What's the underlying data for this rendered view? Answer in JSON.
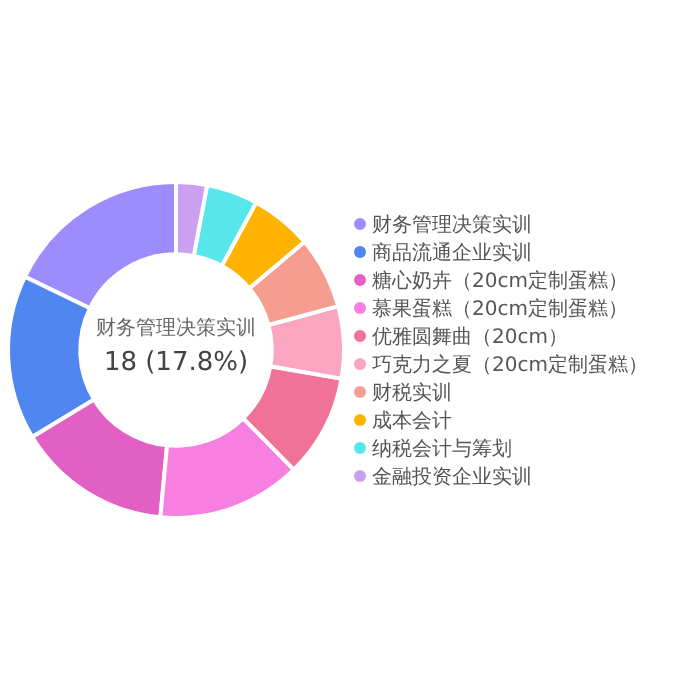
{
  "chart_data": {
    "type": "donut",
    "categories": [
      "财务管理决策实训",
      "商品流通企业实训",
      "糖心奶卉（20cm定制蛋糕）",
      "慕果蛋糕（20cm定制蛋糕）",
      "优雅圆舞曲（20cm）",
      "巧克力之夏（20cm定制蛋糕）",
      "财税实训",
      "成本会计",
      "纳税会计与筹划",
      "金融投资企业实训"
    ],
    "values": [
      18,
      16,
      15,
      14,
      10,
      7,
      7,
      6,
      5,
      3
    ],
    "colors": [
      "#9d8cfb",
      "#4f86ef",
      "#e25fc4",
      "#f77fe2",
      "#f07299",
      "#fba5c0",
      "#f59e8f",
      "#fdb300",
      "#56e6ec",
      "#cba0f0"
    ],
    "legend": "right",
    "annotations": [
      "财务管理决策实训",
      "18 (17.8%)"
    ]
  }
}
